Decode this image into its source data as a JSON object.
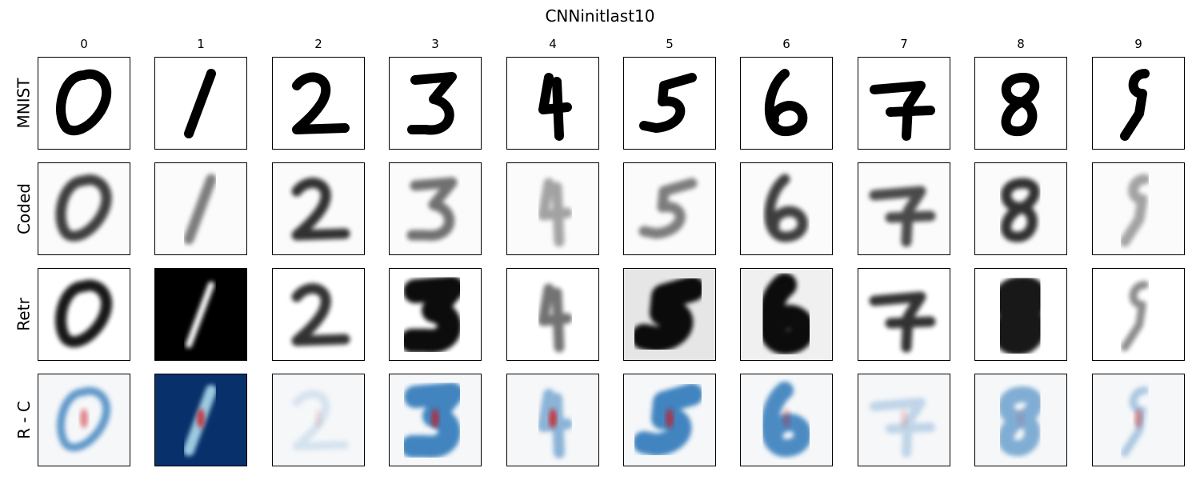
{
  "figure": {
    "title": "CNNinitlast10",
    "columns": [
      "0",
      "1",
      "2",
      "3",
      "4",
      "5",
      "6",
      "7",
      "8",
      "9"
    ],
    "rows": [
      "MNIST",
      "Coded",
      "Retr",
      "R - C"
    ]
  },
  "colors": {
    "ink": "#000000",
    "neg_blue": "#08306b",
    "mid_blue": "#2171b5",
    "light_blue": "#c6dbef",
    "pos_red": "#cb181d",
    "neutral": "#f7f7f7"
  }
}
